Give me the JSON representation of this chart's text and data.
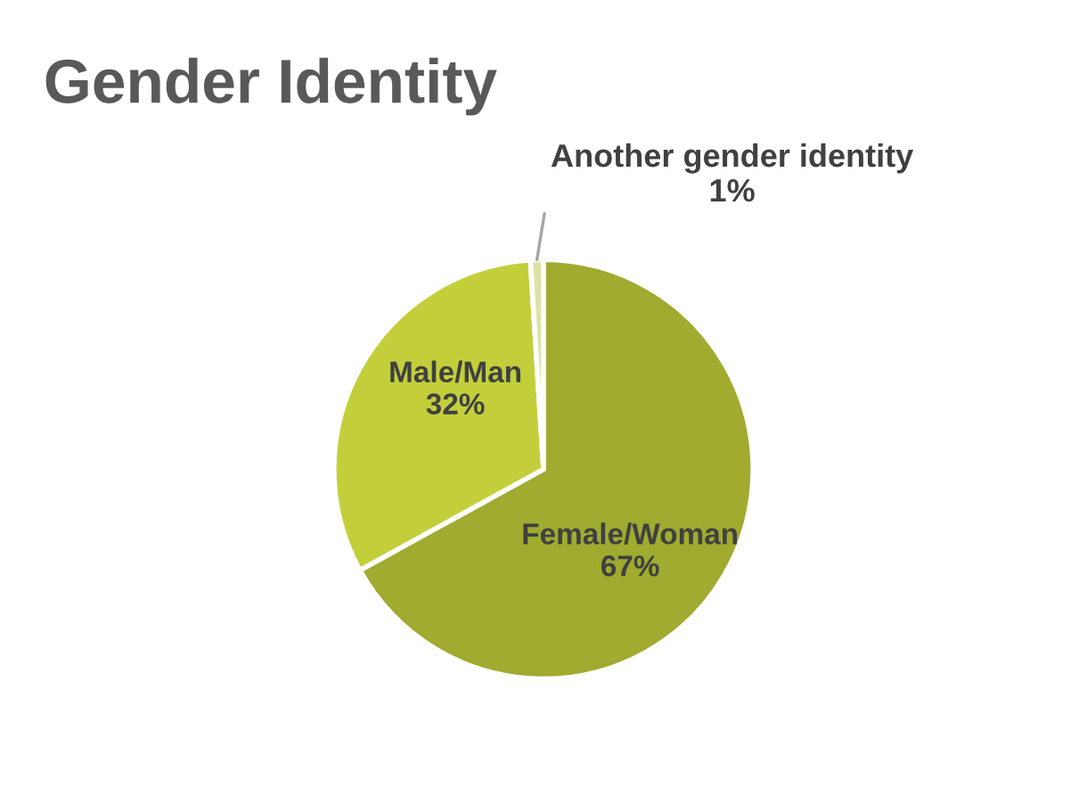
{
  "chart_data": {
    "type": "pie",
    "title": "Gender Identity",
    "categories": [
      "Female/Woman",
      "Male/Man",
      "Another gender identity"
    ],
    "values": [
      67,
      32,
      1
    ],
    "value_labels": [
      "67%",
      "32%",
      "1%"
    ],
    "colors": [
      "#a0ab2f",
      "#c3cf3a",
      "#dde3a6"
    ]
  }
}
